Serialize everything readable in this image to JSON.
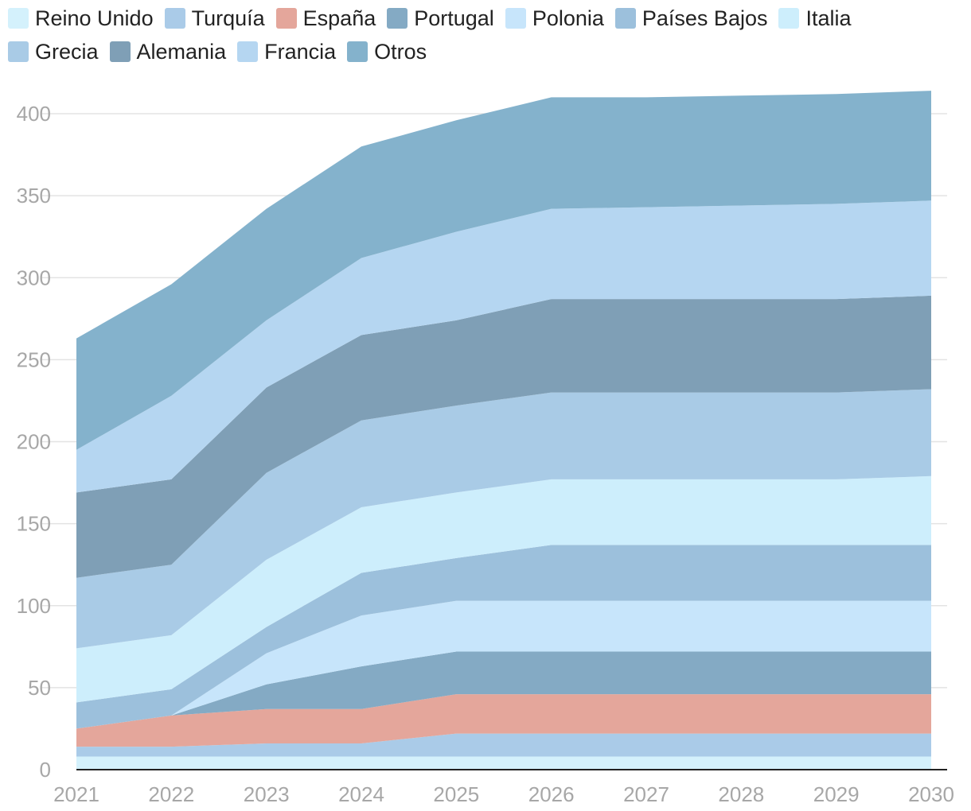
{
  "chart_data": {
    "type": "area",
    "stacked": true,
    "title": "",
    "xlabel": "",
    "ylabel": "",
    "x": [
      "2021",
      "2022",
      "2023",
      "2024",
      "2025",
      "2026",
      "2027",
      "2028",
      "2029",
      "2030"
    ],
    "ylim": [
      0,
      420
    ],
    "yticks": [
      "0",
      "50",
      "100",
      "150",
      "200",
      "250",
      "300",
      "350",
      "400"
    ],
    "grid": true,
    "legend_position": "top",
    "series": [
      {
        "name": "Reino Unido",
        "color": "#d4f1fc",
        "values": [
          8,
          8,
          8,
          8,
          8,
          8,
          8,
          8,
          8,
          8
        ]
      },
      {
        "name": "Turquía",
        "color": "#aacbe8",
        "values": [
          6,
          6,
          8,
          8,
          14,
          14,
          14,
          14,
          14,
          14
        ]
      },
      {
        "name": "España",
        "color": "#e4a69b",
        "values": [
          11,
          19,
          21,
          21,
          24,
          24,
          24,
          24,
          24,
          24
        ]
      },
      {
        "name": "Portugal",
        "color": "#84aac4",
        "values": [
          0,
          0,
          15,
          26,
          26,
          26,
          26,
          26,
          26,
          26
        ]
      },
      {
        "name": "Polonia",
        "color": "#c7e5fb",
        "values": [
          0,
          0,
          19,
          31,
          31,
          31,
          31,
          31,
          31,
          31
        ]
      },
      {
        "name": "Países Bajos",
        "color": "#9cc0dc",
        "values": [
          16,
          16,
          16,
          26,
          26,
          34,
          34,
          34,
          34,
          34
        ]
      },
      {
        "name": "Italia",
        "color": "#cdeefc",
        "values": [
          33,
          33,
          41,
          40,
          40,
          40,
          40,
          40,
          40,
          42
        ]
      },
      {
        "name": "Grecia",
        "color": "#a9cbe6",
        "values": [
          43,
          43,
          53,
          53,
          53,
          53,
          53,
          53,
          53,
          53
        ]
      },
      {
        "name": "Alemania",
        "color": "#7f9fb6",
        "values": [
          52,
          52,
          52,
          52,
          52,
          57,
          57,
          57,
          57,
          57
        ]
      },
      {
        "name": "Francia",
        "color": "#b5d6f1",
        "values": [
          26,
          51,
          41,
          47,
          54,
          55,
          56,
          57,
          58,
          58
        ]
      },
      {
        "name": "Otros",
        "color": "#84b2cc",
        "values": [
          68,
          68,
          68,
          68,
          68,
          68,
          67,
          67,
          67,
          67
        ]
      }
    ]
  }
}
